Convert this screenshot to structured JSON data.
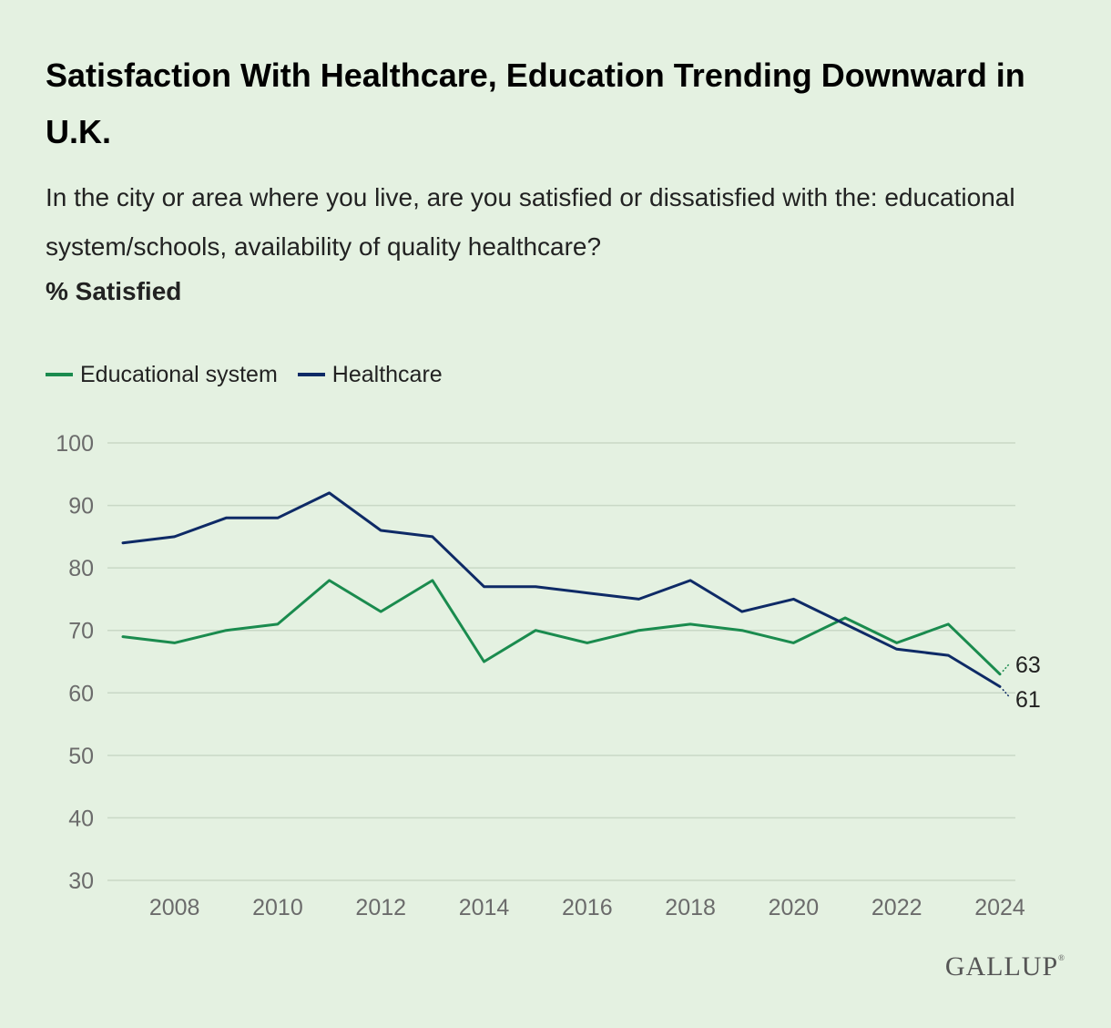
{
  "title": "Satisfaction With Healthcare, Education Trending Downward in U.K.",
  "subtitle": "In the city or area where you live, are you satisfied or dissatisfied with the: educational system/schools, availability of quality healthcare?",
  "unit_label": "% Satisfied",
  "logo_text": "GALLUP",
  "colors": {
    "background": "#e4f1e1",
    "educational": "#1a8b4e",
    "healthcare": "#0e2a66",
    "grid": "#c9d8c6"
  },
  "chart_data": {
    "type": "line",
    "x": [
      2007,
      2008,
      2009,
      2010,
      2011,
      2012,
      2013,
      2014,
      2015,
      2016,
      2017,
      2018,
      2019,
      2020,
      2021,
      2022,
      2023,
      2024
    ],
    "series": [
      {
        "name": "Educational system",
        "color": "#1a8b4e",
        "values": [
          69,
          68,
          70,
          71,
          78,
          73,
          78,
          65,
          70,
          68,
          70,
          71,
          70,
          68,
          72,
          68,
          71,
          63
        ],
        "end_label": "63"
      },
      {
        "name": "Healthcare",
        "color": "#0e2a66",
        "values": [
          84,
          85,
          88,
          88,
          92,
          86,
          85,
          77,
          77,
          76,
          75,
          78,
          73,
          75,
          71,
          67,
          66,
          61
        ],
        "end_label": "61"
      }
    ],
    "x_ticks": [
      "2008",
      "2010",
      "2012",
      "2014",
      "2016",
      "2018",
      "2020",
      "2022",
      "2024"
    ],
    "y_ticks": [
      "30",
      "40",
      "50",
      "60",
      "70",
      "80",
      "90",
      "100"
    ],
    "xlim": [
      2007,
      2024
    ],
    "ylim": [
      30,
      100
    ],
    "grid": true,
    "legend_position": "top-left"
  }
}
